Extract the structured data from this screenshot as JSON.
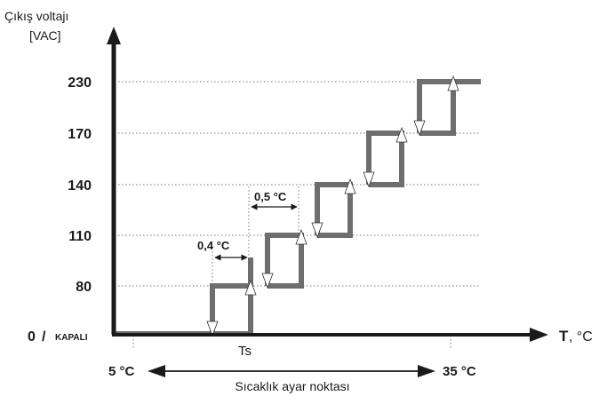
{
  "y_axis_title_line1": "Çıkış voltajı",
  "y_axis_title_line2": "[VAC]",
  "y_ticks": [
    "230",
    "170",
    "140",
    "110",
    "80"
  ],
  "y_zero": "0",
  "y_zero_sep": "/",
  "y_zero_off": "KAPALI",
  "x_axis_T": "T",
  "x_axis_unit": ", °C",
  "setpoint_label": "Ts",
  "range_min": "5 °C",
  "range_max": "35 °C",
  "range_label": "Sıcaklık ayar noktası",
  "hysteresis_label": "0,4 °C",
  "step_gap_label": "0,5 °C",
  "colors": {
    "axis": "#1a1a1a",
    "steps": "#6e6e6e",
    "grid": "#777777"
  }
}
